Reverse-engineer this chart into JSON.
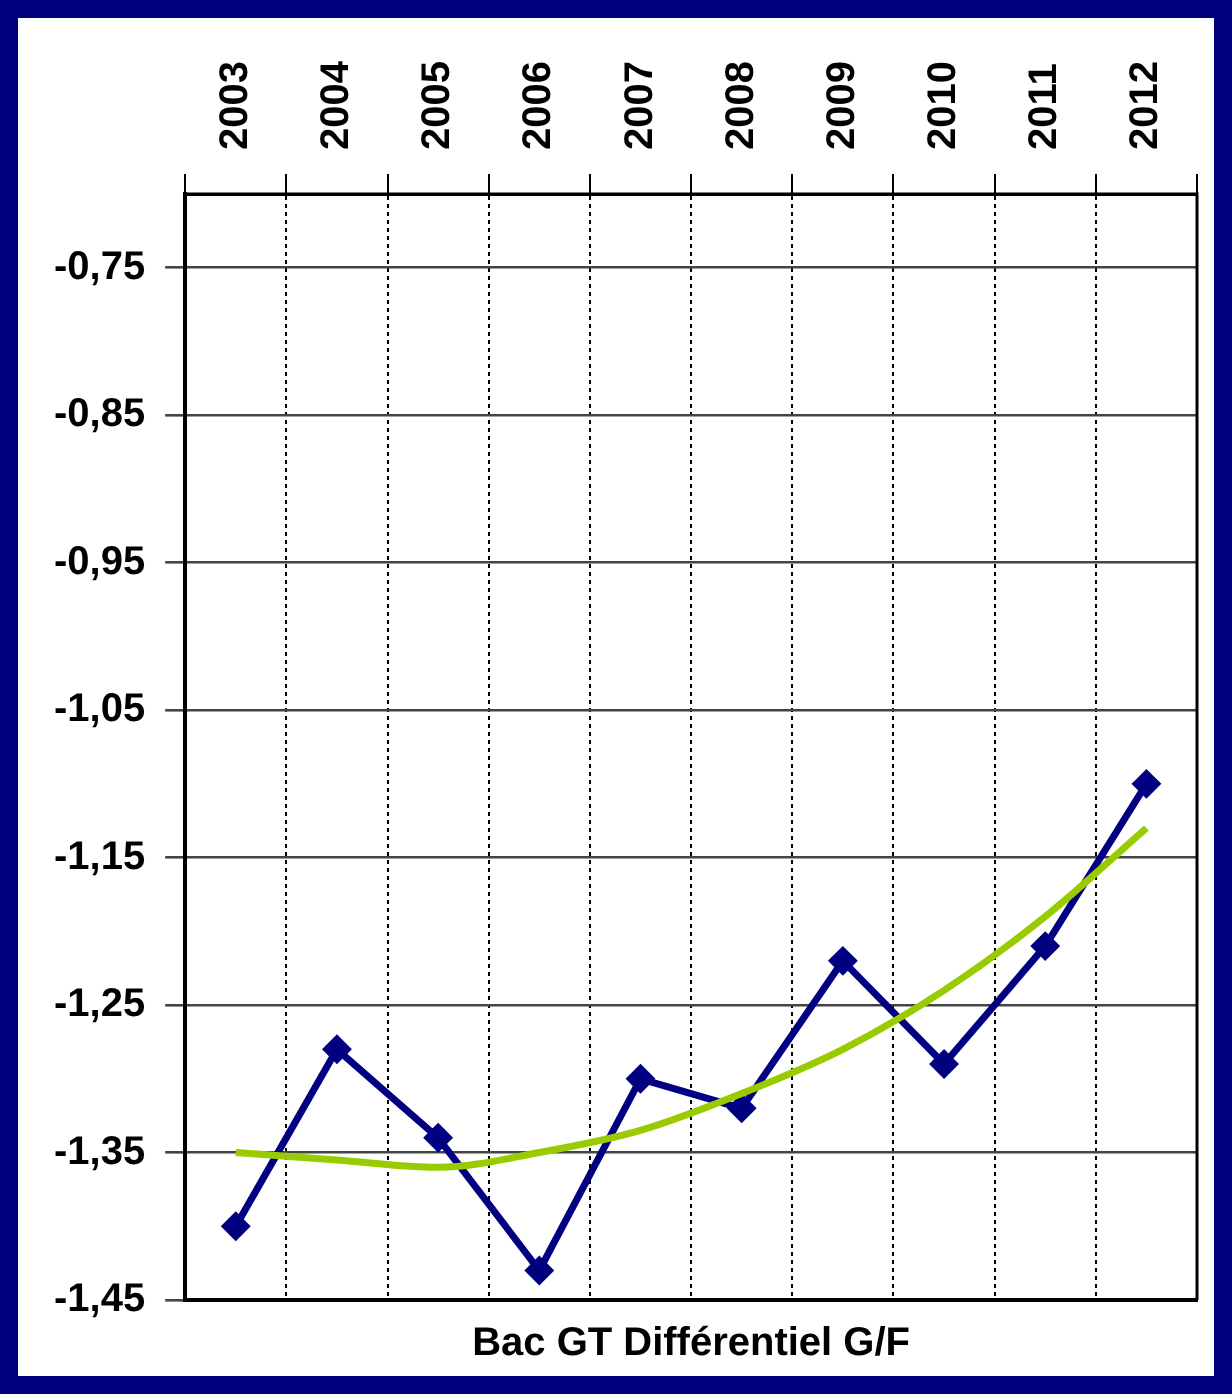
{
  "chart_data": {
    "type": "line",
    "xlabel": "Bac GT Différentiel G/F",
    "categories": [
      "2003",
      "2004",
      "2005",
      "2006",
      "2007",
      "2008",
      "2009",
      "2010",
      "2011",
      "2012"
    ],
    "series": [
      {
        "color": "#000080",
        "values": [
          -1.4,
          -1.28,
          -1.34,
          -1.43,
          -1.3,
          -1.32,
          -1.22,
          -1.29,
          -1.21,
          -1.1
        ]
      },
      {
        "type": "line",
        "color": "#99cc00",
        "marker": "none",
        "values": [
          -1.35,
          -1.355,
          -1.36,
          -1.35,
          -1.335,
          -1.31,
          -1.28,
          -1.24,
          -1.19,
          -1.13
        ]
      }
    ],
    "ylim": [
      -1.45,
      -0.7
    ],
    "yticks": [
      {
        "value": -1.45,
        "label": "-1,45"
      },
      {
        "value": -1.35,
        "label": "-1,35"
      },
      {
        "value": -1.25,
        "label": "-1,25"
      },
      {
        "value": -1.15,
        "label": "-1,15"
      },
      {
        "value": -1.05,
        "label": "-1,05"
      },
      {
        "value": -0.95,
        "label": "-0,95"
      },
      {
        "value": -0.85,
        "label": "-0,85"
      },
      {
        "value": -0.75,
        "label": "-0,75"
      }
    ],
    "grid": true,
    "marker": "diamond",
    "legend": false
  }
}
